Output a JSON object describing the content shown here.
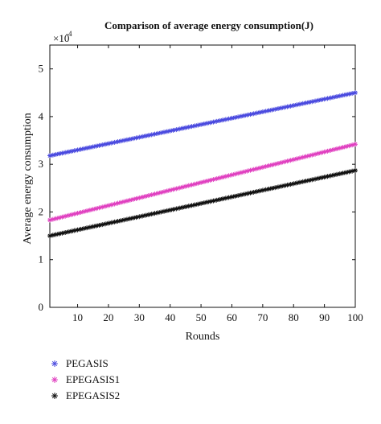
{
  "chart_data": {
    "type": "line",
    "title": "Comparison of average energy consumption(J)",
    "xlabel": "Rounds",
    "ylabel": "Average energy consumption",
    "y_multiplier_base": "×10",
    "y_multiplier_exp": "-4",
    "xlim": [
      1,
      100
    ],
    "ylim": [
      0,
      5.5
    ],
    "x_ticks": [
      10,
      20,
      30,
      40,
      50,
      60,
      70,
      80,
      90,
      100
    ],
    "y_ticks": [
      0,
      1,
      2,
      3,
      4,
      5
    ],
    "grid": false,
    "legend_position": "bottom-left",
    "series": [
      {
        "name": "PEGASIS",
        "color": "#4a4adf",
        "marker": "star",
        "x": [
          1,
          100
        ],
        "y": [
          3.18,
          4.5
        ]
      },
      {
        "name": "EPEGASIS1",
        "color": "#e040c0",
        "marker": "star",
        "x": [
          1,
          100
        ],
        "y": [
          1.83,
          3.42
        ]
      },
      {
        "name": "EPEGASIS2",
        "color": "#111111",
        "marker": "star",
        "x": [
          1,
          100
        ],
        "y": [
          1.5,
          2.87
        ]
      }
    ]
  }
}
